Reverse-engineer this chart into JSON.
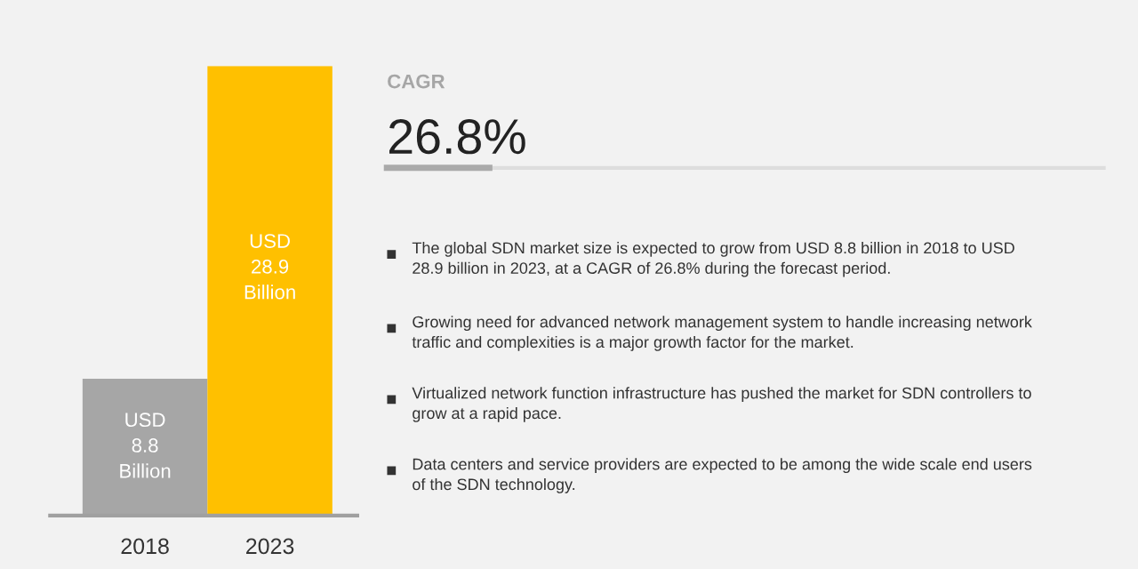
{
  "chart_data": [
    {
      "type": "bar",
      "categories": [
        "2018",
        "2023"
      ],
      "values": [
        8.8,
        28.9
      ],
      "colors": [
        "#a6a6a6",
        "#ffc000"
      ],
      "value_labels": [
        "USD\n8.8\nBillion",
        "USD\n28.9\nBillion"
      ]
    },
    {
      "type": "other",
      "title": "CAGR",
      "subtitle": "26.8%",
      "annotations": [
        "The global SDN market size is expected to grow from USD 8.8 billion in 2018 to USD 28.9 billion in 2023, at a CAGR of 26.8% during the forecast period.",
        "Growing need for advanced network management system to handle increasing network traffic and complexities is a major growth factor for the market.",
        "Virtualized network function infrastructure has pushed the market for SDN controllers to grow at a rapid pace.",
        "Data centers and service providers are expected to be among the wide scale end users of the SDN technology."
      ]
    }
  ]
}
